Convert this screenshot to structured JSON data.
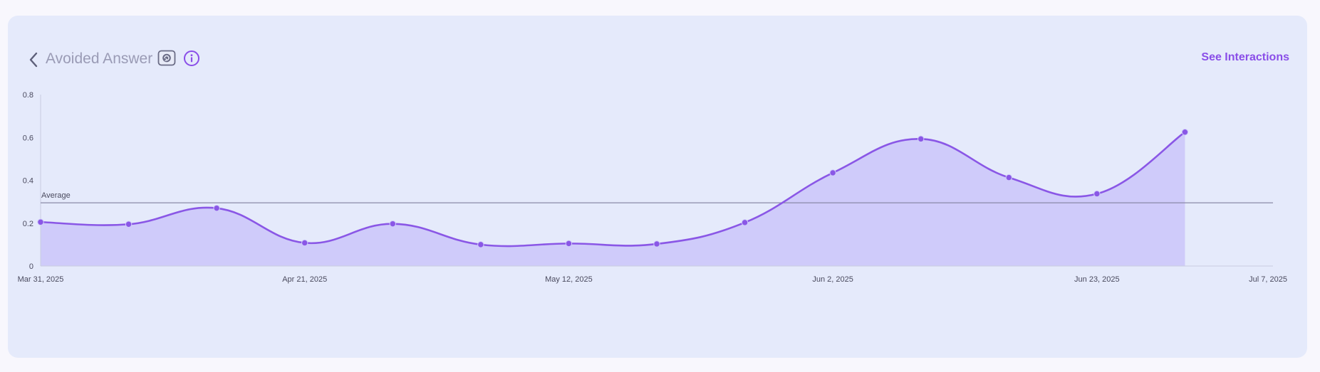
{
  "header": {
    "title": "Avoided Answer",
    "see_interactions_label": "See Interactions",
    "back_icon": "chevron-left-icon",
    "refresh_icon": "refresh-icon",
    "info_icon": "info-icon"
  },
  "colors": {
    "accent": "#8a4ee8",
    "line": "#8a57e6",
    "area_fill": "#cfcbfa",
    "average_line": "#8a8aa8",
    "card_bg": "#e5eafb",
    "page_bg": "#f8f7fd"
  },
  "chart_data": {
    "type": "area",
    "x_ticks": [
      "Mar 31, 2025",
      "Apr 21, 2025",
      "May 12, 2025",
      "Jun 2, 2025",
      "Jun 23, 2025",
      "Jul 7, 2025"
    ],
    "y_ticks": [
      "0",
      "0.2",
      "0.4",
      "0.6",
      "0.8"
    ],
    "ylim": [
      0,
      0.8
    ],
    "xlim": [
      "2025-03-31",
      "2025-07-07"
    ],
    "series": [
      {
        "points": [
          {
            "x": "2025-03-31",
            "y": 0.205
          },
          {
            "x": "2025-04-07",
            "y": 0.195
          },
          {
            "x": "2025-04-14",
            "y": 0.27
          },
          {
            "x": "2025-04-21",
            "y": 0.108
          },
          {
            "x": "2025-04-28",
            "y": 0.197
          },
          {
            "x": "2025-05-05",
            "y": 0.1
          },
          {
            "x": "2025-05-12",
            "y": 0.105
          },
          {
            "x": "2025-05-19",
            "y": 0.103
          },
          {
            "x": "2025-05-26",
            "y": 0.203
          },
          {
            "x": "2025-06-02",
            "y": 0.435
          },
          {
            "x": "2025-06-09",
            "y": 0.593
          },
          {
            "x": "2025-06-16",
            "y": 0.413
          },
          {
            "x": "2025-06-23",
            "y": 0.337
          },
          {
            "x": "2025-06-30",
            "y": 0.625
          }
        ]
      }
    ],
    "average": {
      "label": "Average",
      "value": 0.295
    },
    "grid": false
  }
}
